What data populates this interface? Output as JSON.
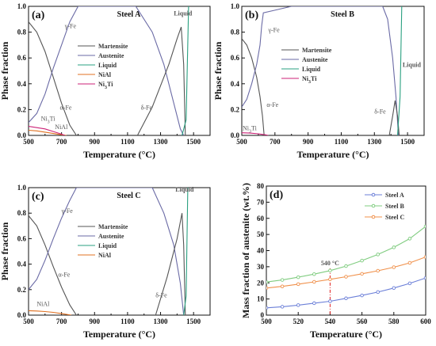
{
  "chart_data": [
    {
      "id": "a",
      "type": "line",
      "panel_label": "(a)",
      "title": "Steel A",
      "xlabel": "Temperature (°C)",
      "ylabel": "Phase fraction",
      "xlim": [
        500,
        1600
      ],
      "ylim": [
        0,
        1.0
      ],
      "xticks": [
        500,
        700,
        900,
        1100,
        1300,
        1500
      ],
      "yticks": [
        0.0,
        0.2,
        0.4,
        0.6,
        0.8,
        1.0
      ],
      "x_minor_ticks": [
        600,
        800,
        1000,
        1200,
        1400
      ],
      "legend_position": "center-right",
      "series": [
        {
          "name": "Martensite",
          "color": "#555555",
          "points": [
            [
              500,
              0.88
            ],
            [
              550,
              0.8
            ],
            [
              600,
              0.65
            ],
            [
              650,
              0.45
            ],
            [
              700,
              0.25
            ],
            [
              750,
              0.08
            ],
            [
              790,
              0
            ]
          ]
        },
        {
          "name": "Austenite",
          "color": "#6a6aa5",
          "points": [
            [
              500,
              0.1
            ],
            [
              550,
              0.17
            ],
            [
              600,
              0.32
            ],
            [
              650,
              0.52
            ],
            [
              700,
              0.7
            ],
            [
              750,
              0.88
            ],
            [
              800,
              1.0
            ],
            [
              1150,
              1.0
            ],
            [
              1250,
              0.8
            ],
            [
              1320,
              0.55
            ],
            [
              1380,
              0.25
            ],
            [
              1420,
              0.05
            ],
            [
              1440,
              0
            ]
          ]
        },
        {
          "name": "δ-ferrite",
          "legend": false,
          "color": "#555555",
          "points": [
            [
              1160,
              0
            ],
            [
              1250,
              0.22
            ],
            [
              1350,
              0.55
            ],
            [
              1400,
              0.75
            ],
            [
              1425,
              0.84
            ],
            [
              1440,
              0.55
            ],
            [
              1450,
              0
            ]
          ]
        },
        {
          "name": "Liquid",
          "color": "#2aa080",
          "points": [
            [
              1430,
              0
            ],
            [
              1455,
              0.12
            ],
            [
              1470,
              1.0
            ]
          ]
        },
        {
          "name": "NiAl",
          "color": "#e07020",
          "points": [
            [
              500,
              0.04
            ],
            [
              550,
              0.035
            ],
            [
              600,
              0.025
            ],
            [
              650,
              0.015
            ],
            [
              700,
              0.005
            ],
            [
              730,
              0
            ]
          ]
        },
        {
          "name": "Ni3Ti",
          "color": "#cc2277",
          "points": [
            [
              500,
              0.07
            ],
            [
              550,
              0.06
            ],
            [
              600,
              0.05
            ],
            [
              650,
              0.03
            ],
            [
              700,
              0.01
            ],
            [
              720,
              0
            ]
          ]
        }
      ],
      "annotations": [
        {
          "text": "γ-Fe",
          "x": 720,
          "y": 0.83,
          "color": "#6a6aa5"
        },
        {
          "text": "α-Fe",
          "x": 690,
          "y": 0.2,
          "color": "#555555"
        },
        {
          "text": "δ-Fe",
          "x": 1180,
          "y": 0.2,
          "color": "#555555"
        },
        {
          "text": "Liquid",
          "x": 1380,
          "y": 0.93,
          "color": "#2aa080",
          "bold": true
        },
        {
          "text": "Ni3Ti",
          "x": 575,
          "y": 0.115,
          "color": "#cc2277"
        },
        {
          "text": "NiAl",
          "x": 660,
          "y": 0.05,
          "color": "#e07020"
        }
      ]
    },
    {
      "id": "b",
      "type": "line",
      "panel_label": "(b)",
      "title": "Steel B",
      "xlabel": "Temperature (°C)",
      "ylabel": "Phase fraction",
      "xlim": [
        500,
        1600
      ],
      "ylim": [
        0,
        1.0
      ],
      "xticks": [
        500,
        700,
        900,
        1100,
        1300,
        1500
      ],
      "yticks": [
        0.0,
        0.2,
        0.4,
        0.6,
        0.8,
        1.0
      ],
      "x_minor_ticks": [
        600,
        800,
        1000,
        1200,
        1400
      ],
      "legend_position": "center-right",
      "series": [
        {
          "name": "Martensite",
          "color": "#555555",
          "points": [
            [
              500,
              0.75
            ],
            [
              530,
              0.7
            ],
            [
              560,
              0.6
            ],
            [
              590,
              0.45
            ],
            [
              610,
              0.3
            ],
            [
              625,
              0.15
            ],
            [
              635,
              0
            ]
          ]
        },
        {
          "name": "Austenite",
          "color": "#6a6aa5",
          "points": [
            [
              500,
              0.22
            ],
            [
              530,
              0.28
            ],
            [
              560,
              0.4
            ],
            [
              590,
              0.55
            ],
            [
              610,
              0.7
            ],
            [
              620,
              0.85
            ],
            [
              630,
              0.95
            ],
            [
              700,
              0.97
            ],
            [
              800,
              1.0
            ],
            [
              1350,
              1.0
            ],
            [
              1380,
              0.9
            ],
            [
              1410,
              0.6
            ],
            [
              1430,
              0.3
            ],
            [
              1445,
              0
            ]
          ]
        },
        {
          "name": "δ-ferrite",
          "legend": false,
          "color": "#555555",
          "points": [
            [
              1390,
              0
            ],
            [
              1410,
              0.15
            ],
            [
              1425,
              0.27
            ],
            [
              1440,
              0.15
            ],
            [
              1450,
              0
            ]
          ]
        },
        {
          "name": "Liquid",
          "color": "#2aa080",
          "points": [
            [
              1440,
              0
            ],
            [
              1455,
              0.3
            ],
            [
              1465,
              1.0
            ]
          ]
        },
        {
          "name": "Ni3Ti",
          "color": "#cc2277",
          "points": [
            [
              500,
              0.02
            ],
            [
              550,
              0.018
            ],
            [
              600,
              0.012
            ],
            [
              640,
              0.005
            ],
            [
              660,
              0
            ]
          ]
        }
      ],
      "annotations": [
        {
          "text": "γ-Fe",
          "x": 660,
          "y": 0.8,
          "color": "#6a6aa5"
        },
        {
          "text": "α-Fe",
          "x": 650,
          "y": 0.22,
          "color": "#555555"
        },
        {
          "text": "δ-Fe",
          "x": 1300,
          "y": 0.17,
          "color": "#555555"
        },
        {
          "text": "Liquid",
          "x": 1470,
          "y": 0.53,
          "color": "#2aa080",
          "bold": true
        },
        {
          "text": "Ni3Ti",
          "x": 505,
          "y": 0.04,
          "color": "#cc2277"
        }
      ]
    },
    {
      "id": "c",
      "type": "line",
      "panel_label": "(c)",
      "title": "Steel C",
      "xlabel": "Temperature (°C)",
      "ylabel": "Phase fraction",
      "xlim": [
        500,
        1600
      ],
      "ylim": [
        0,
        1.0
      ],
      "xticks": [
        500,
        700,
        900,
        1100,
        1300,
        1500
      ],
      "yticks": [
        0.0,
        0.2,
        0.4,
        0.6,
        0.8,
        1.0
      ],
      "x_minor_ticks": [
        600,
        800,
        1000,
        1200,
        1400
      ],
      "legend_position": "center-right",
      "series": [
        {
          "name": "Martensite",
          "color": "#555555",
          "points": [
            [
              500,
              0.78
            ],
            [
              550,
              0.7
            ],
            [
              600,
              0.55
            ],
            [
              650,
              0.38
            ],
            [
              700,
              0.22
            ],
            [
              750,
              0.08
            ],
            [
              790,
              0
            ]
          ]
        },
        {
          "name": "Austenite",
          "color": "#6a6aa5",
          "points": [
            [
              500,
              0.2
            ],
            [
              550,
              0.28
            ],
            [
              600,
              0.43
            ],
            [
              650,
              0.6
            ],
            [
              700,
              0.76
            ],
            [
              750,
              0.9
            ],
            [
              790,
              1.0
            ],
            [
              1250,
              1.0
            ],
            [
              1320,
              0.8
            ],
            [
              1380,
              0.55
            ],
            [
              1420,
              0.25
            ],
            [
              1440,
              0
            ]
          ]
        },
        {
          "name": "δ-ferrite",
          "legend": false,
          "color": "#555555",
          "points": [
            [
              1270,
              0
            ],
            [
              1340,
              0.3
            ],
            [
              1400,
              0.6
            ],
            [
              1430,
              0.8
            ],
            [
              1440,
              0.55
            ],
            [
              1450,
              0
            ]
          ]
        },
        {
          "name": "Liquid",
          "color": "#2aa080",
          "points": [
            [
              1440,
              0
            ],
            [
              1455,
              0.15
            ],
            [
              1465,
              1.0
            ]
          ]
        },
        {
          "name": "NiAl",
          "color": "#e07020",
          "points": [
            [
              500,
              0.035
            ],
            [
              550,
              0.032
            ],
            [
              600,
              0.028
            ],
            [
              650,
              0.022
            ],
            [
              700,
              0.012
            ],
            [
              760,
              0
            ]
          ]
        }
      ],
      "annotations": [
        {
          "text": "γ-Fe",
          "x": 700,
          "y": 0.8,
          "color": "#6a6aa5"
        },
        {
          "text": "α-Fe",
          "x": 680,
          "y": 0.3,
          "color": "#555555"
        },
        {
          "text": "δ-Fe",
          "x": 1270,
          "y": 0.14,
          "color": "#555555"
        },
        {
          "text": "Liquid",
          "x": 1390,
          "y": 0.97,
          "color": "#2aa080",
          "bold": true
        },
        {
          "text": "NiAl",
          "x": 550,
          "y": 0.07,
          "color": "#e07020"
        }
      ]
    },
    {
      "id": "d",
      "type": "line",
      "panel_label": "(d)",
      "title": "",
      "xlabel": "Temperature (°C)",
      "ylabel": "Mass fraction of austenite (wt.%)",
      "xlim": [
        500,
        600
      ],
      "ylim": [
        0,
        80
      ],
      "xticks": [
        500,
        520,
        540,
        560,
        580,
        600
      ],
      "yticks": [
        0,
        10,
        20,
        30,
        40,
        50,
        60,
        70,
        80
      ],
      "legend_position": "top-right",
      "markers": true,
      "series": [
        {
          "name": "Steel A",
          "color": "#6b7fd8",
          "x": [
            500,
            510,
            520,
            530,
            540,
            550,
            560,
            570,
            580,
            590,
            600
          ],
          "values": [
            4.5,
            5.2,
            6.2,
            7.4,
            8.6,
            10.4,
            12.2,
            14.3,
            16.8,
            19.7,
            23.0
          ]
        },
        {
          "name": "Steel B",
          "color": "#7fcc7f",
          "x": [
            500,
            510,
            520,
            530,
            540,
            550,
            560,
            570,
            580,
            590,
            600
          ],
          "values": [
            20.5,
            21.8,
            23.5,
            25.4,
            27.6,
            30.4,
            33.8,
            37.6,
            42.0,
            47.4,
            55.0
          ]
        },
        {
          "name": "Steel C",
          "color": "#f0904a",
          "x": [
            500,
            510,
            520,
            530,
            540,
            550,
            560,
            570,
            580,
            590,
            600
          ],
          "values": [
            16.8,
            17.8,
            19.2,
            20.6,
            22.2,
            23.8,
            25.6,
            27.5,
            29.7,
            32.4,
            36.0
          ]
        }
      ],
      "annotations": [
        {
          "text": "540 °C",
          "x": 540,
          "y": 31,
          "color": "#e02020",
          "bold": true,
          "vline": true,
          "vline_color": "#e02020"
        }
      ]
    }
  ]
}
